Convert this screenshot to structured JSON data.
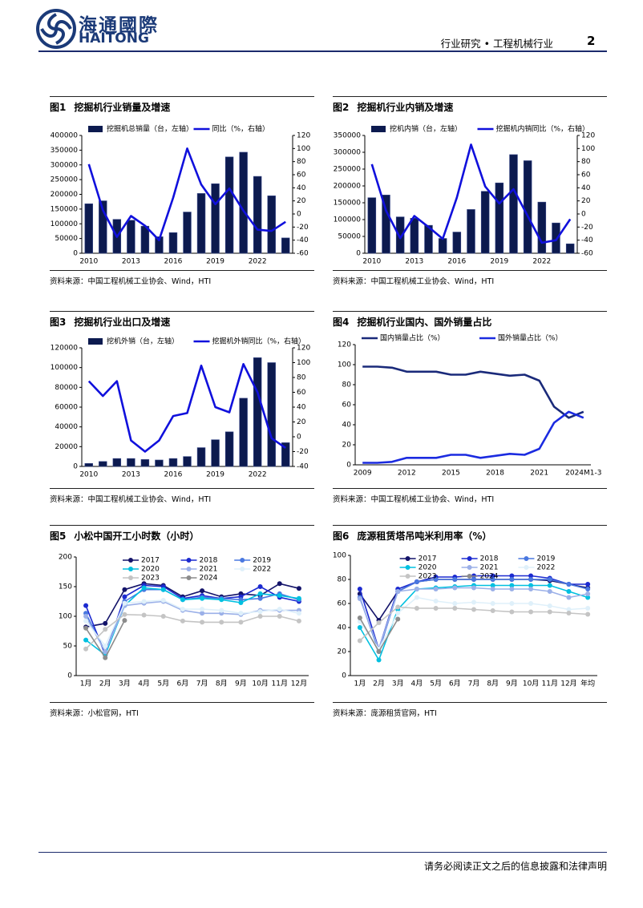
{
  "header": {
    "logo_cn": "海通國際",
    "logo_en": "HAITONG",
    "section": "行业研究 • 工程机械行业",
    "page": "2"
  },
  "footer": "请务必阅读正文之后的信息披露和法律声明",
  "chart_data": [
    {
      "type": "bar",
      "figure": "图1",
      "title": "挖掘机行业销量及增速",
      "source": "资料来源：中国工程机械工业协会、Wind，HTI",
      "categories": [
        "2010",
        null,
        null,
        "2013",
        null,
        null,
        "2016",
        null,
        null,
        "2019",
        null,
        null,
        "2022",
        null,
        null
      ],
      "series": [
        {
          "name": "挖掘机总销量（台，左轴）",
          "type": "bar",
          "color": "#0c1a4f",
          "values": [
            168000,
            178000,
            115000,
            112000,
            92000,
            56000,
            70000,
            140000,
            203000,
            236000,
            327000,
            343000,
            261000,
            195000,
            52000
          ]
        },
        {
          "name": "同比（%，右轴）",
          "type": "line",
          "axis": "y2",
          "color": "#1010dc",
          "values": [
            76,
            6,
            -35,
            -3,
            -18,
            -40,
            25,
            100,
            45,
            15,
            39,
            5,
            -24,
            -26,
            -12
          ]
        }
      ],
      "ylim": [
        0,
        400000
      ],
      "yticks": [
        0,
        50000,
        100000,
        150000,
        200000,
        250000,
        300000,
        350000,
        400000
      ],
      "y2lim": [
        -60,
        120
      ],
      "y2ticks": [
        -60,
        -40,
        -20,
        0,
        20,
        40,
        60,
        80,
        100,
        120
      ]
    },
    {
      "type": "bar",
      "figure": "图2",
      "title": "挖掘机行业内销及增速",
      "source": "资料来源：中国工程机械工业协会、Wind，HTI",
      "categories": [
        "2010",
        null,
        null,
        "2013",
        null,
        null,
        "2016",
        null,
        null,
        "2019",
        null,
        null,
        "2022",
        null,
        null
      ],
      "series": [
        {
          "name": "挖机内销（台，左轴）",
          "type": "bar",
          "color": "#0c1a4f",
          "values": [
            165000,
            173000,
            108000,
            104000,
            83000,
            44000,
            63000,
            130000,
            184000,
            209000,
            293000,
            275000,
            152000,
            90000,
            28000
          ]
        },
        {
          "name": "挖掘机内销同比（%，右轴）",
          "type": "line",
          "axis": "y2",
          "color": "#1010dc",
          "values": [
            76,
            5,
            -37,
            -3,
            -20,
            -38,
            25,
            106,
            42,
            16,
            38,
            -3,
            -44,
            -40,
            -8
          ]
        }
      ],
      "ylim": [
        0,
        350000
      ],
      "yticks": [
        0,
        50000,
        100000,
        150000,
        200000,
        250000,
        300000,
        350000
      ],
      "y2lim": [
        -60,
        120
      ],
      "y2ticks": [
        -60,
        -40,
        -20,
        0,
        20,
        40,
        60,
        80,
        100,
        120
      ]
    },
    {
      "type": "bar",
      "figure": "图3",
      "title": "挖掘机行业出口及增速",
      "source": "资料来源：中国工程机械工业协会、Wind，HTI",
      "categories": [
        "2010",
        null,
        null,
        "2013",
        null,
        null,
        "2016",
        null,
        null,
        "2019",
        null,
        null,
        "2022",
        null,
        null
      ],
      "series": [
        {
          "name": "挖机外销（台，左轴）",
          "type": "bar",
          "color": "#0c1a4f",
          "values": [
            3000,
            5000,
            8000,
            8000,
            7000,
            6500,
            8000,
            10000,
            19000,
            27000,
            35000,
            69000,
            110000,
            105000,
            24000
          ]
        },
        {
          "name": "挖掘机外销同比（%，右轴）",
          "type": "line",
          "axis": "y2",
          "color": "#1010dc",
          "values": [
            75,
            55,
            75,
            -5,
            -20,
            -5,
            28,
            32,
            96,
            40,
            33,
            98,
            60,
            -2,
            -15
          ]
        }
      ],
      "ylim": [
        0,
        120000
      ],
      "yticks": [
        0,
        20000,
        40000,
        60000,
        80000,
        100000,
        120000
      ],
      "y2lim": [
        -40,
        120
      ],
      "y2ticks": [
        -40,
        -20,
        0,
        20,
        40,
        60,
        80,
        100,
        120
      ]
    },
    {
      "type": "line",
      "figure": "图4",
      "title": "挖掘机行业国内、国外销量占比",
      "source": "资料来源：中国工程机械工业协会、Wind，HTI",
      "categories": [
        "2009",
        null,
        null,
        "2012",
        null,
        null,
        "2015",
        null,
        null,
        "2018",
        null,
        null,
        "2021",
        null,
        null,
        "2024M1-3"
      ],
      "series": [
        {
          "name": "国内销量占比（%）",
          "color": "#1a2a7a",
          "values": [
            98,
            98,
            97,
            93,
            93,
            93,
            90,
            90,
            93,
            91,
            89,
            90,
            84,
            58,
            47,
            53
          ]
        },
        {
          "name": "国外销量占比（%）",
          "color": "#1b2be0",
          "values": [
            2,
            2,
            3,
            7,
            7,
            7,
            10,
            10,
            7,
            9,
            11,
            10,
            16,
            42,
            53,
            47
          ]
        }
      ],
      "ylim": [
        0,
        120
      ],
      "yticks": [
        0,
        20,
        40,
        60,
        80,
        100,
        120
      ]
    },
    {
      "type": "line",
      "figure": "图5",
      "title": "小松中国开工小时数（小时）",
      "source": "资料来源：小松官网，HTI",
      "markers": true,
      "categories": [
        "1月",
        "2月",
        "3月",
        "4月",
        "5月",
        "6月",
        "7月",
        "8月",
        "9月",
        "10月",
        "11月",
        "12月"
      ],
      "series": [
        {
          "name": "2017",
          "color": "#14146a",
          "values": [
            82,
            88,
            145,
            155,
            152,
            133,
            143,
            133,
            138,
            135,
            155,
            147
          ]
        },
        {
          "name": "2018",
          "color": "#1c2ad0",
          "values": [
            118,
            35,
            133,
            152,
            150,
            130,
            135,
            130,
            133,
            150,
            132,
            125
          ]
        },
        {
          "name": "2019",
          "color": "#4a78e0",
          "values": [
            105,
            40,
            125,
            145,
            145,
            128,
            132,
            130,
            128,
            130,
            138,
            128
          ]
        },
        {
          "name": "2020",
          "color": "#00c0e0",
          "values": [
            60,
            35,
            118,
            148,
            145,
            128,
            130,
            128,
            123,
            138,
            135,
            130
          ]
        },
        {
          "name": "2021",
          "color": "#9bb0e8",
          "values": [
            100,
            40,
            118,
            122,
            125,
            110,
            105,
            105,
            103,
            110,
            110,
            110
          ]
        },
        {
          "name": "2022",
          "color": "#dff0fa",
          "values": [
            92,
            50,
            122,
            125,
            127,
            112,
            112,
            110,
            105,
            108,
            112,
            105
          ]
        },
        {
          "name": "2023",
          "color": "#c4c4c4",
          "values": [
            45,
            78,
            103,
            102,
            100,
            92,
            90,
            90,
            90,
            100,
            100,
            92
          ]
        },
        {
          "name": "2024",
          "color": "#8c8c8c",
          "values": [
            80,
            30,
            93,
            null,
            null,
            null,
            null,
            null,
            null,
            null,
            null,
            null
          ]
        }
      ],
      "ylim": [
        0,
        200
      ],
      "yticks": [
        0,
        50,
        100,
        150,
        200
      ]
    },
    {
      "type": "line",
      "figure": "图6",
      "title": "庞源租赁塔吊吨米利用率（%）",
      "source": "资料来源：庞源租赁官网，HTI",
      "markers": true,
      "categories": [
        "1月",
        "2月",
        "3月",
        "4月",
        "5月",
        "6月",
        "7月",
        "8月",
        "9月",
        "10月",
        "11月",
        "12月",
        "年均"
      ],
      "series": [
        {
          "name": "2017",
          "color": "#14146a",
          "values": [
            68,
            46,
            70,
            78,
            80,
            80,
            80,
            80,
            80,
            80,
            79,
            76,
            73
          ]
        },
        {
          "name": "2018",
          "color": "#1c2ad0",
          "values": [
            72,
            22,
            72,
            78,
            82,
            82,
            83,
            83,
            83,
            83,
            81,
            76,
            76
          ]
        },
        {
          "name": "2019",
          "color": "#4a78e0",
          "values": [
            65,
            20,
            70,
            78,
            80,
            80,
            80,
            80,
            80,
            80,
            80,
            76,
            72
          ]
        },
        {
          "name": "2020",
          "color": "#00c0e0",
          "values": [
            40,
            13,
            55,
            72,
            73,
            74,
            75,
            75,
            75,
            75,
            75,
            70,
            65
          ]
        },
        {
          "name": "2021",
          "color": "#9bb0e8",
          "values": [
            64,
            22,
            70,
            72,
            72,
            73,
            73,
            72,
            72,
            72,
            70,
            65,
            68
          ]
        },
        {
          "name": "2022",
          "color": "#dff0fa",
          "values": [
            45,
            22,
            52,
            65,
            62,
            60,
            61,
            60,
            60,
            60,
            58,
            55,
            56
          ]
        },
        {
          "name": "2023",
          "color": "#c4c4c4",
          "values": [
            29,
            44,
            57,
            56,
            56,
            56,
            55,
            54,
            53,
            53,
            53,
            52,
            51
          ]
        },
        {
          "name": "2024",
          "color": "#8c8c8c",
          "values": [
            48,
            20,
            47,
            null,
            null,
            null,
            null,
            null,
            null,
            null,
            null,
            null,
            null
          ]
        }
      ],
      "ylim": [
        0,
        100
      ],
      "yticks": [
        0,
        20,
        40,
        60,
        80,
        100
      ]
    }
  ]
}
